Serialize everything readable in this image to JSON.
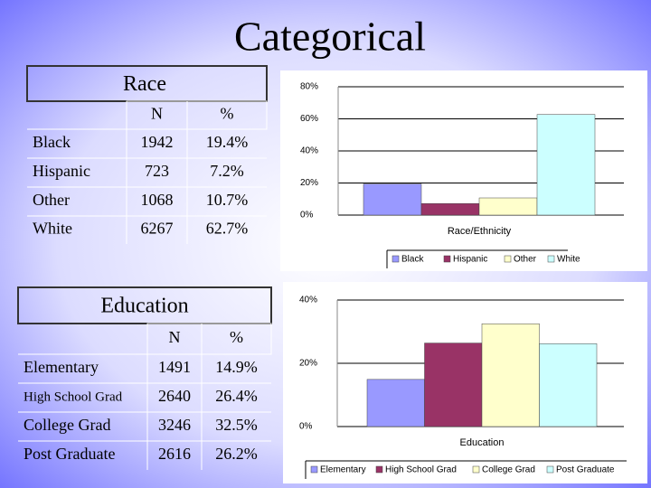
{
  "title": "Categorical",
  "tables": [
    {
      "title": "Race",
      "columns": [
        "N",
        "%"
      ],
      "rows": [
        [
          "Black",
          1942,
          "19.4%"
        ],
        [
          "Hispanic",
          723,
          "7.2%"
        ],
        [
          "Other",
          1068,
          "10.7%"
        ],
        [
          "White",
          6267,
          "62.7%"
        ]
      ]
    },
    {
      "title": "Education",
      "columns": [
        "N",
        "%"
      ],
      "rows": [
        [
          "Elementary",
          1491,
          "14.9%"
        ],
        [
          "High School Grad",
          2640,
          "26.4%"
        ],
        [
          "College Grad",
          3246,
          "32.5%"
        ],
        [
          "Post Graduate",
          2616,
          "26.2%"
        ]
      ]
    }
  ],
  "chart_data": [
    {
      "type": "bar",
      "xlabel": "Race/Ethnicity",
      "ylim": [
        0,
        80
      ],
      "yticks": [
        {
          "value": 0,
          "label": "0%"
        },
        {
          "value": 20,
          "label": "20%"
        },
        {
          "value": 40,
          "label": "40%"
        },
        {
          "value": 60,
          "label": "60%"
        },
        {
          "value": 80,
          "label": "80%"
        }
      ],
      "series": [
        {
          "name": "Black",
          "color": "#9999ff",
          "values": [
            19.4
          ]
        },
        {
          "name": "Hispanic",
          "color": "#993366",
          "values": [
            7.2
          ]
        },
        {
          "name": "Other",
          "color": "#ffffcc",
          "values": [
            10.7
          ]
        },
        {
          "name": "White",
          "color": "#ccffff",
          "values": [
            62.7
          ]
        }
      ]
    },
    {
      "type": "bar",
      "xlabel": "Education",
      "ylim": [
        0,
        40
      ],
      "yticks": [
        {
          "value": 0,
          "label": "0%"
        },
        {
          "value": 20,
          "label": "20%"
        },
        {
          "value": 40,
          "label": "40%"
        }
      ],
      "series": [
        {
          "name": "Elementary",
          "color": "#9999ff",
          "values": [
            14.9
          ]
        },
        {
          "name": "High School Grad",
          "color": "#993366",
          "values": [
            26.4
          ]
        },
        {
          "name": "College Grad",
          "color": "#ffffcc",
          "values": [
            32.5
          ]
        },
        {
          "name": "Post Graduate",
          "color": "#ccffff",
          "values": [
            26.2
          ]
        }
      ]
    }
  ]
}
